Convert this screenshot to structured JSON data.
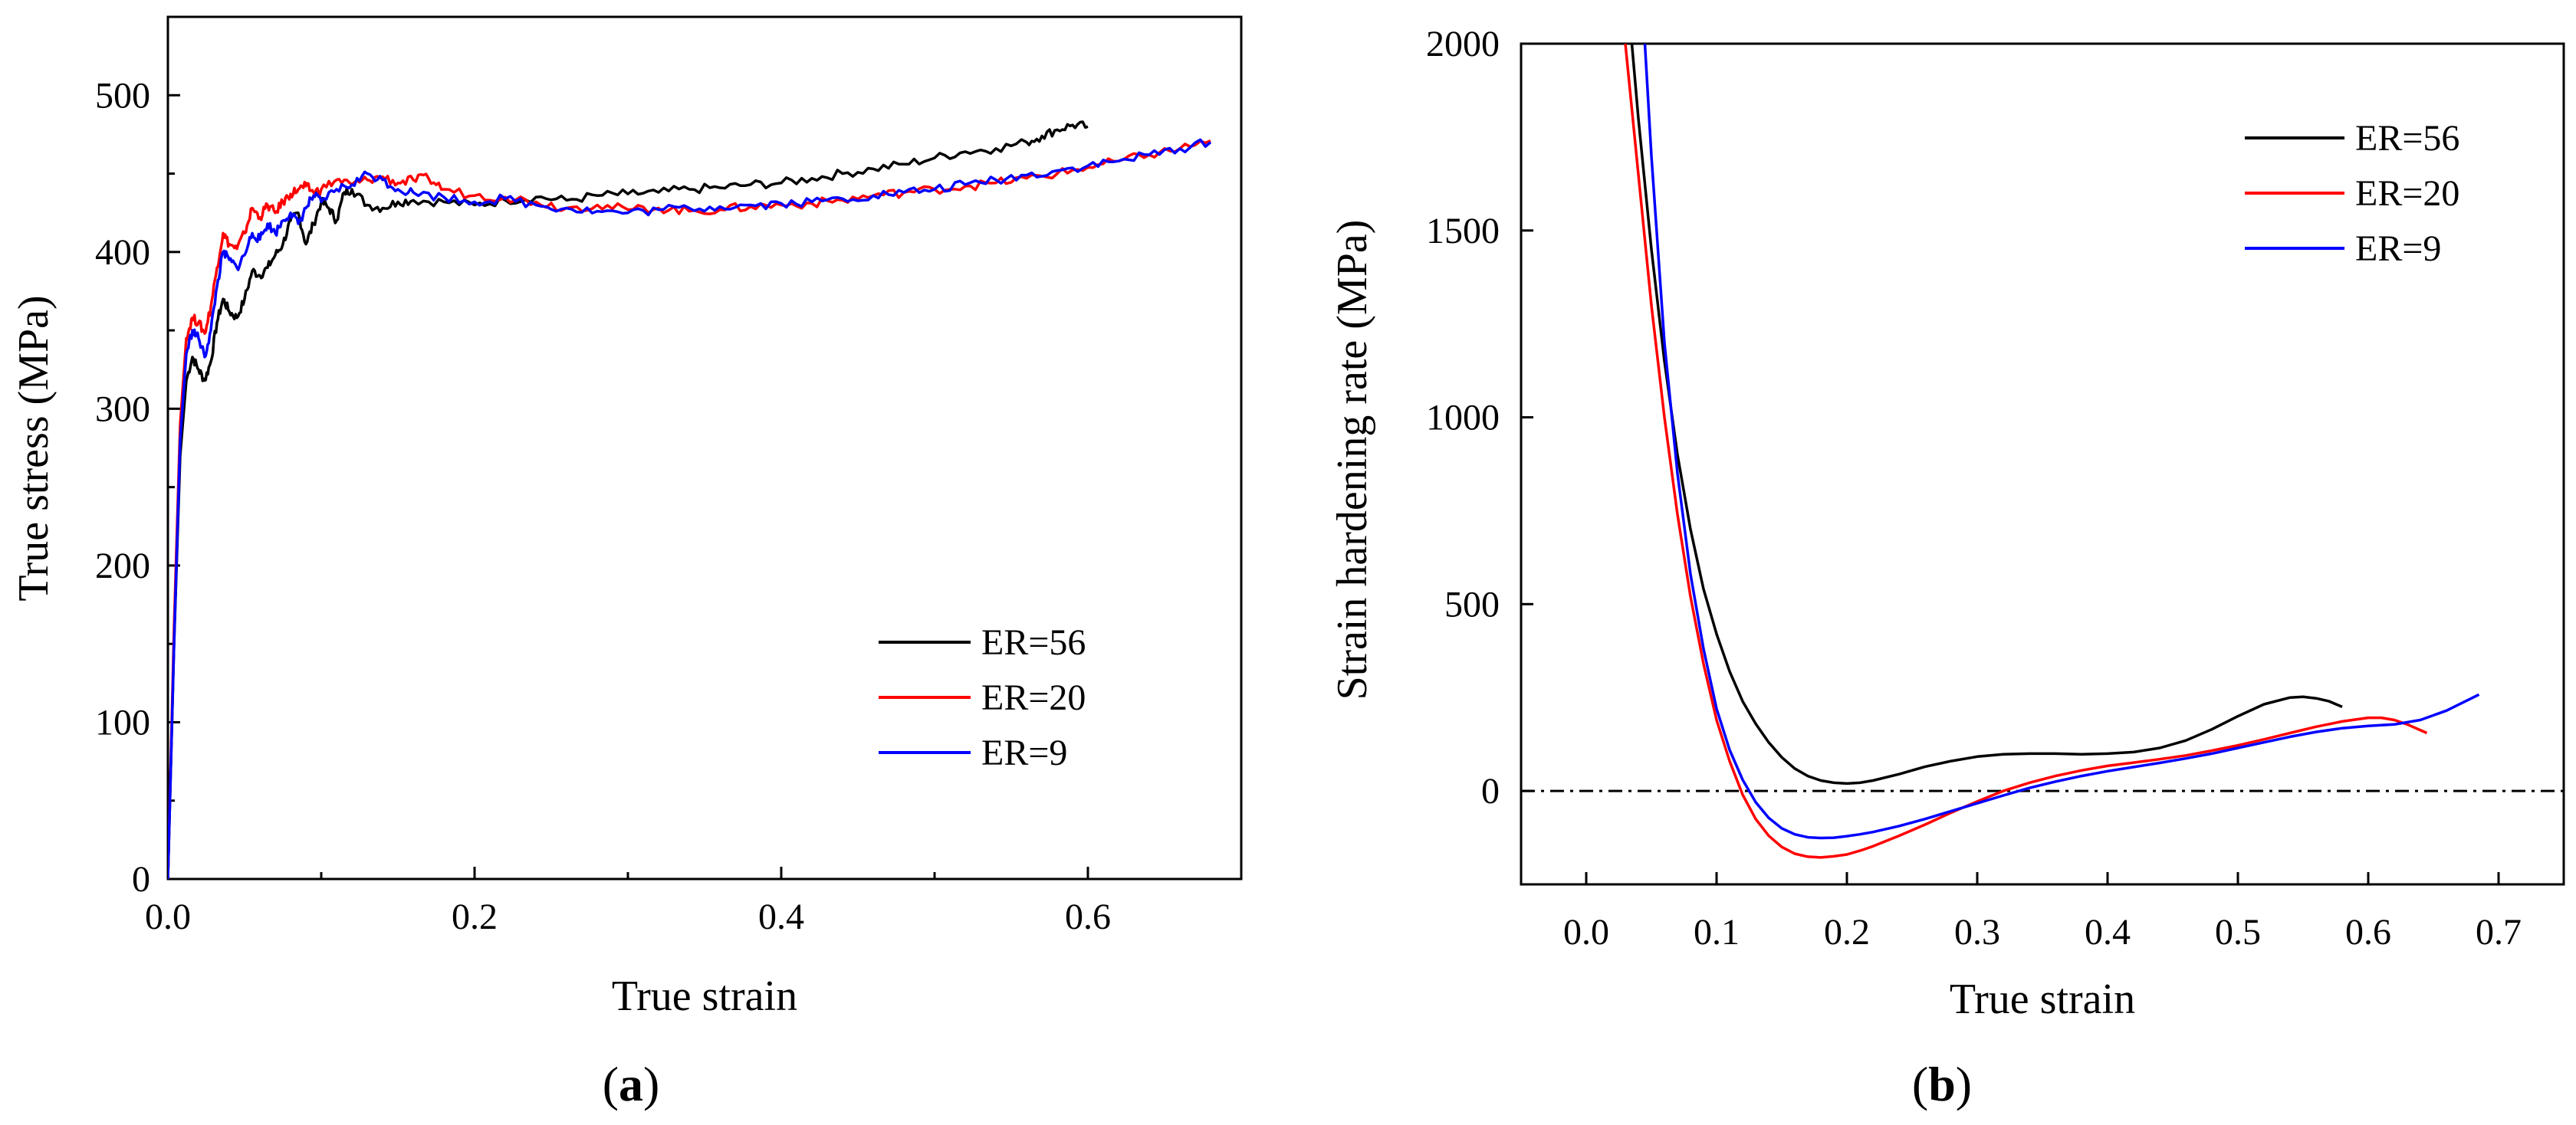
{
  "chart_data": [
    {
      "type": "line",
      "panel_label": "(a)",
      "panel_letter": "a",
      "title": "",
      "xlabel": "True strain",
      "ylabel": "True stress (MPa)",
      "xlim": [
        0,
        0.7
      ],
      "ylim": [
        0,
        550
      ],
      "xticks": [
        0.0,
        0.2,
        0.4,
        0.6
      ],
      "xtick_labels": [
        "0.0",
        "0.2",
        "0.4",
        "0.6"
      ],
      "yticks": [
        0,
        100,
        200,
        300,
        400,
        500
      ],
      "ytick_labels": [
        "0",
        "100",
        "200",
        "300",
        "400",
        "500"
      ],
      "grid": false,
      "legend_position": "lower-right",
      "series": [
        {
          "name": "ER=56",
          "color": "#000000",
          "x": [
            0,
            0.004,
            0.008,
            0.012,
            0.016,
            0.02,
            0.024,
            0.028,
            0.032,
            0.036,
            0.04,
            0.045,
            0.05,
            0.055,
            0.06,
            0.065,
            0.07,
            0.075,
            0.08,
            0.085,
            0.09,
            0.095,
            0.1,
            0.105,
            0.11,
            0.115,
            0.12,
            0.13,
            0.14,
            0.15,
            0.16,
            0.18,
            0.2,
            0.22,
            0.24,
            0.26,
            0.28,
            0.3,
            0.32,
            0.34,
            0.36,
            0.38,
            0.4,
            0.42,
            0.44,
            0.46,
            0.48,
            0.5,
            0.52,
            0.54,
            0.56,
            0.57,
            0.58,
            0.59,
            0.6
          ],
          "values": [
            0,
            150,
            270,
            318,
            333,
            325,
            318,
            330,
            355,
            370,
            362,
            358,
            370,
            388,
            385,
            390,
            398,
            405,
            420,
            425,
            405,
            418,
            432,
            428,
            420,
            438,
            440,
            430,
            428,
            432,
            433,
            432,
            430,
            433,
            435,
            433,
            436,
            437,
            438,
            440,
            441,
            443,
            444,
            447,
            450,
            453,
            456,
            460,
            464,
            466,
            470,
            474,
            478,
            481,
            480
          ]
        },
        {
          "name": "ER=20",
          "color": "#ff0000",
          "x": [
            0,
            0.004,
            0.008,
            0.012,
            0.016,
            0.02,
            0.024,
            0.028,
            0.032,
            0.036,
            0.04,
            0.045,
            0.05,
            0.055,
            0.06,
            0.065,
            0.07,
            0.075,
            0.08,
            0.085,
            0.09,
            0.095,
            0.1,
            0.11,
            0.12,
            0.13,
            0.14,
            0.15,
            0.16,
            0.17,
            0.18,
            0.2,
            0.22,
            0.24,
            0.26,
            0.28,
            0.3,
            0.32,
            0.34,
            0.36,
            0.38,
            0.4,
            0.42,
            0.44,
            0.46,
            0.48,
            0.5,
            0.52,
            0.54,
            0.56,
            0.58,
            0.6,
            0.62,
            0.64,
            0.66,
            0.68
          ],
          "values": [
            0,
            160,
            290,
            345,
            358,
            355,
            348,
            365,
            390,
            412,
            405,
            402,
            412,
            428,
            422,
            430,
            425,
            432,
            437,
            440,
            442,
            438,
            440,
            446,
            443,
            446,
            448,
            444,
            446,
            447,
            440,
            436,
            435,
            432,
            428,
            430,
            427,
            428,
            426,
            427,
            429,
            430,
            431,
            433,
            436,
            438,
            440,
            442,
            444,
            447,
            450,
            454,
            458,
            462,
            466,
            471
          ]
        },
        {
          "name": "ER=9",
          "color": "#0000ff",
          "x": [
            0,
            0.004,
            0.008,
            0.012,
            0.016,
            0.02,
            0.024,
            0.028,
            0.032,
            0.036,
            0.04,
            0.045,
            0.05,
            0.055,
            0.06,
            0.065,
            0.07,
            0.075,
            0.08,
            0.085,
            0.09,
            0.095,
            0.1,
            0.11,
            0.12,
            0.13,
            0.14,
            0.15,
            0.16,
            0.18,
            0.2,
            0.22,
            0.24,
            0.26,
            0.28,
            0.3,
            0.32,
            0.34,
            0.36,
            0.38,
            0.4,
            0.42,
            0.44,
            0.46,
            0.48,
            0.5,
            0.52,
            0.54,
            0.56,
            0.58,
            0.6,
            0.62,
            0.64,
            0.66,
            0.68
          ],
          "values": [
            0,
            150,
            280,
            335,
            350,
            345,
            333,
            350,
            378,
            400,
            395,
            390,
            398,
            412,
            408,
            418,
            412,
            420,
            425,
            418,
            428,
            436,
            432,
            440,
            443,
            450,
            446,
            440,
            438,
            435,
            432,
            434,
            430,
            428,
            426,
            425,
            427,
            428,
            429,
            430,
            431,
            432,
            434,
            436,
            438,
            440,
            443,
            446,
            449,
            452,
            455,
            458,
            462,
            466,
            470
          ]
        }
      ]
    },
    {
      "type": "line",
      "panel_label": "(b)",
      "panel_letter": "b",
      "title": "",
      "xlabel": "True strain",
      "ylabel": "Strain hardening rate  (MPa)",
      "xlim": [
        -0.05,
        0.75
      ],
      "ylim": [
        -250,
        2000
      ],
      "xticks": [
        0.0,
        0.1,
        0.2,
        0.3,
        0.4,
        0.5,
        0.6,
        0.7
      ],
      "xtick_labels": [
        "0.0",
        "0.1",
        "0.2",
        "0.3",
        "0.4",
        "0.5",
        "0.6",
        "0.7"
      ],
      "yticks": [
        0,
        500,
        1000,
        1500,
        2000
      ],
      "ytick_labels": [
        "0",
        "500",
        "1000",
        "1500",
        "2000"
      ],
      "grid": false,
      "legend_position": "top-right",
      "reference_line": {
        "y": 0,
        "style": "dash-dot"
      },
      "series": [
        {
          "name": "ER=56",
          "color": "#000000",
          "x": [
            0.035,
            0.04,
            0.05,
            0.06,
            0.07,
            0.08,
            0.09,
            0.1,
            0.11,
            0.12,
            0.13,
            0.14,
            0.15,
            0.16,
            0.17,
            0.18,
            0.19,
            0.2,
            0.21,
            0.22,
            0.24,
            0.26,
            0.28,
            0.3,
            0.32,
            0.34,
            0.36,
            0.38,
            0.4,
            0.42,
            0.44,
            0.46,
            0.48,
            0.5,
            0.52,
            0.54,
            0.55,
            0.56,
            0.57,
            0.58
          ],
          "values": [
            2000,
            1800,
            1450,
            1150,
            900,
            700,
            540,
            420,
            320,
            240,
            180,
            130,
            90,
            60,
            40,
            28,
            22,
            20,
            22,
            28,
            45,
            65,
            80,
            92,
            98,
            100,
            100,
            98,
            100,
            104,
            115,
            135,
            165,
            200,
            232,
            250,
            252,
            248,
            240,
            225
          ]
        },
        {
          "name": "ER=20",
          "color": "#ff0000",
          "x": [
            0.03,
            0.04,
            0.05,
            0.06,
            0.07,
            0.08,
            0.09,
            0.1,
            0.11,
            0.12,
            0.13,
            0.14,
            0.15,
            0.16,
            0.17,
            0.18,
            0.19,
            0.2,
            0.21,
            0.22,
            0.24,
            0.26,
            0.28,
            0.3,
            0.32,
            0.34,
            0.36,
            0.38,
            0.4,
            0.42,
            0.44,
            0.46,
            0.48,
            0.5,
            0.52,
            0.54,
            0.56,
            0.58,
            0.6,
            0.61,
            0.62,
            0.63,
            0.645
          ],
          "values": [
            2000,
            1650,
            1300,
            1000,
            740,
            520,
            340,
            190,
            80,
            -10,
            -75,
            -120,
            -150,
            -168,
            -176,
            -178,
            -175,
            -170,
            -160,
            -148,
            -120,
            -90,
            -58,
            -28,
            0,
            22,
            40,
            55,
            67,
            76,
            85,
            95,
            108,
            122,
            138,
            155,
            172,
            186,
            196,
            196,
            190,
            178,
            155
          ]
        },
        {
          "name": "ER=9",
          "color": "#0000ff",
          "x": [
            0.045,
            0.05,
            0.06,
            0.07,
            0.08,
            0.09,
            0.1,
            0.11,
            0.12,
            0.13,
            0.14,
            0.15,
            0.16,
            0.17,
            0.18,
            0.19,
            0.2,
            0.21,
            0.22,
            0.24,
            0.26,
            0.28,
            0.3,
            0.32,
            0.34,
            0.36,
            0.38,
            0.4,
            0.42,
            0.44,
            0.46,
            0.48,
            0.5,
            0.52,
            0.54,
            0.56,
            0.58,
            0.6,
            0.62,
            0.64,
            0.66,
            0.685
          ],
          "values": [
            2000,
            1700,
            1200,
            850,
            580,
            380,
            220,
            110,
            30,
            -30,
            -72,
            -100,
            -116,
            -124,
            -126,
            -125,
            -121,
            -116,
            -110,
            -94,
            -75,
            -54,
            -33,
            -12,
            8,
            25,
            40,
            53,
            64,
            75,
            87,
            100,
            115,
            130,
            145,
            158,
            168,
            174,
            178,
            190,
            215,
            258
          ]
        }
      ]
    }
  ]
}
